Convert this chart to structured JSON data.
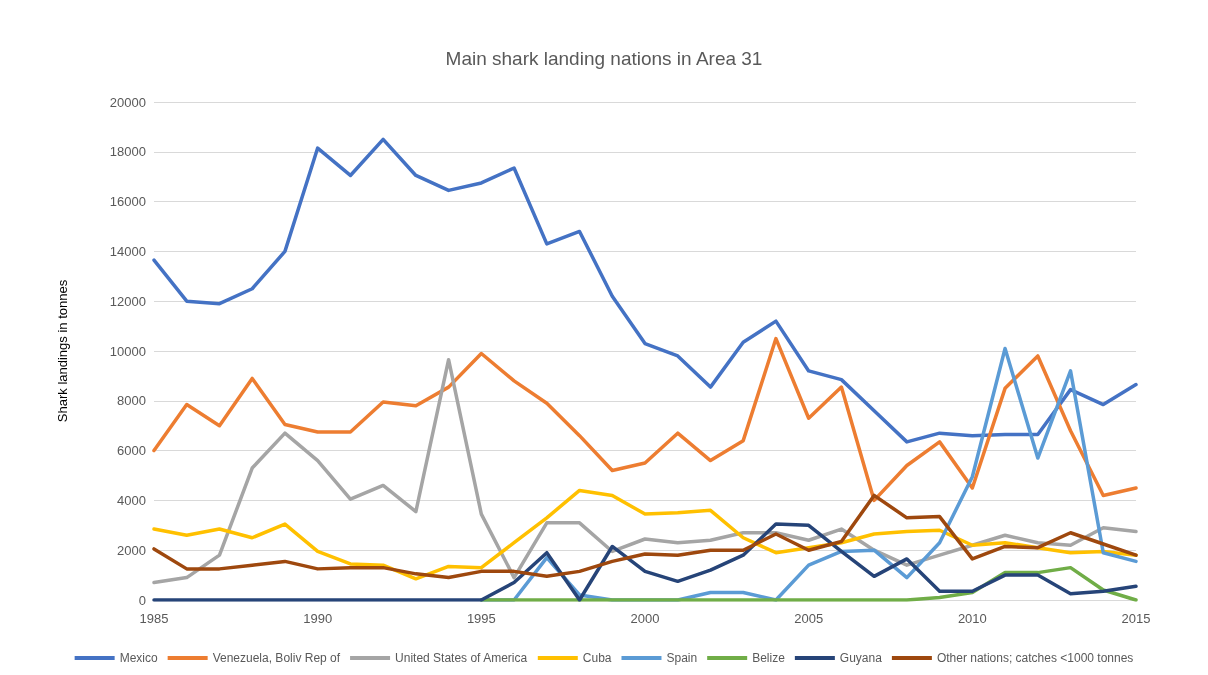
{
  "chart_data": {
    "type": "line",
    "title": "Main shark landing nations in Area 31",
    "ylabel": "Shark landings in tonnes",
    "x": [
      1985,
      1986,
      1987,
      1988,
      1989,
      1990,
      1991,
      1992,
      1993,
      1994,
      1995,
      1996,
      1997,
      1998,
      1999,
      2000,
      2001,
      2002,
      2003,
      2004,
      2005,
      2006,
      2007,
      2008,
      2009,
      2010,
      2011,
      2012,
      2013,
      2014,
      2015
    ],
    "xlim": [
      1985,
      2015
    ],
    "xticks": [
      1985,
      1990,
      1995,
      2000,
      2005,
      2010,
      2015
    ],
    "ylim": [
      0,
      20000
    ],
    "yticks": [
      0,
      2000,
      4000,
      6000,
      8000,
      10000,
      12000,
      14000,
      16000,
      18000,
      20000
    ],
    "grid": "y",
    "legend": "bottom",
    "marker": "none",
    "line_style": "solid",
    "series": [
      {
        "name": "Mexico",
        "color": "#4472c4",
        "values": [
          13650,
          12000,
          11900,
          12500,
          14000,
          18150,
          17050,
          18500,
          17050,
          16450,
          16750,
          17350,
          14300,
          14800,
          12200,
          10300,
          9800,
          8550,
          10350,
          11200,
          9200,
          8850,
          7600,
          6350,
          6700,
          6600,
          6650,
          6650,
          8450,
          7850,
          8650
        ]
      },
      {
        "name": "Venezuela, Boliv Rep of",
        "color": "#ed7d31",
        "values": [
          6000,
          7850,
          7000,
          8900,
          7050,
          6750,
          6750,
          7950,
          7800,
          8550,
          9900,
          8800,
          7900,
          6600,
          5200,
          5500,
          6700,
          5600,
          6400,
          10500,
          7300,
          8550,
          4000,
          5400,
          6350,
          4500,
          8500,
          9800,
          6800,
          4200,
          4500
        ]
      },
      {
        "name": "United States of America",
        "color": "#a5a5a5",
        "values": [
          700,
          900,
          1800,
          5300,
          6700,
          5600,
          4050,
          4600,
          3550,
          9650,
          3450,
          900,
          3100,
          3100,
          1950,
          2450,
          2300,
          2400,
          2700,
          2700,
          2400,
          2850,
          2000,
          1400,
          1800,
          2200,
          2600,
          2300,
          2200,
          2900,
          2750
        ]
      },
      {
        "name": "Cuba",
        "color": "#ffc000",
        "values": [
          2850,
          2600,
          2850,
          2500,
          3050,
          1950,
          1450,
          1400,
          850,
          1350,
          1300,
          2300,
          3300,
          4400,
          4200,
          3450,
          3500,
          3600,
          2500,
          1900,
          2100,
          2300,
          2650,
          2750,
          2800,
          2200,
          2300,
          2100,
          1900,
          1950,
          1800
        ]
      },
      {
        "name": "Spain",
        "color": "#5b9bd5",
        "values": [
          null,
          null,
          null,
          null,
          null,
          null,
          null,
          null,
          null,
          null,
          0,
          0,
          1700,
          200,
          0,
          0,
          0,
          300,
          300,
          0,
          1400,
          1950,
          2000,
          900,
          2300,
          4950,
          10100,
          5700,
          9200,
          1900,
          1550
        ]
      },
      {
        "name": "Belize",
        "color": "#70ad47",
        "values": [
          null,
          null,
          null,
          null,
          null,
          null,
          null,
          null,
          null,
          null,
          0,
          0,
          0,
          0,
          0,
          0,
          0,
          0,
          0,
          0,
          0,
          0,
          0,
          0,
          100,
          300,
          1100,
          1100,
          1300,
          400,
          0
        ]
      },
      {
        "name": "Guyana",
        "color": "#264478",
        "values": [
          0,
          0,
          0,
          0,
          0,
          0,
          0,
          0,
          0,
          0,
          0,
          700,
          1900,
          0,
          2150,
          1150,
          750,
          1200,
          1800,
          3050,
          3000,
          1950,
          950,
          1650,
          350,
          350,
          1000,
          1000,
          250,
          350,
          550
        ]
      },
      {
        "name": "Other nations; catches <1000 tonnes",
        "color": "#9e480e",
        "values": [
          2050,
          1250,
          1250,
          1400,
          1550,
          1250,
          1300,
          1300,
          1050,
          900,
          1150,
          1150,
          950,
          1150,
          1550,
          1850,
          1800,
          2000,
          2000,
          2650,
          2000,
          2350,
          4200,
          3300,
          3350,
          1650,
          2150,
          2100,
          2700,
          2250,
          1800
        ]
      }
    ]
  }
}
